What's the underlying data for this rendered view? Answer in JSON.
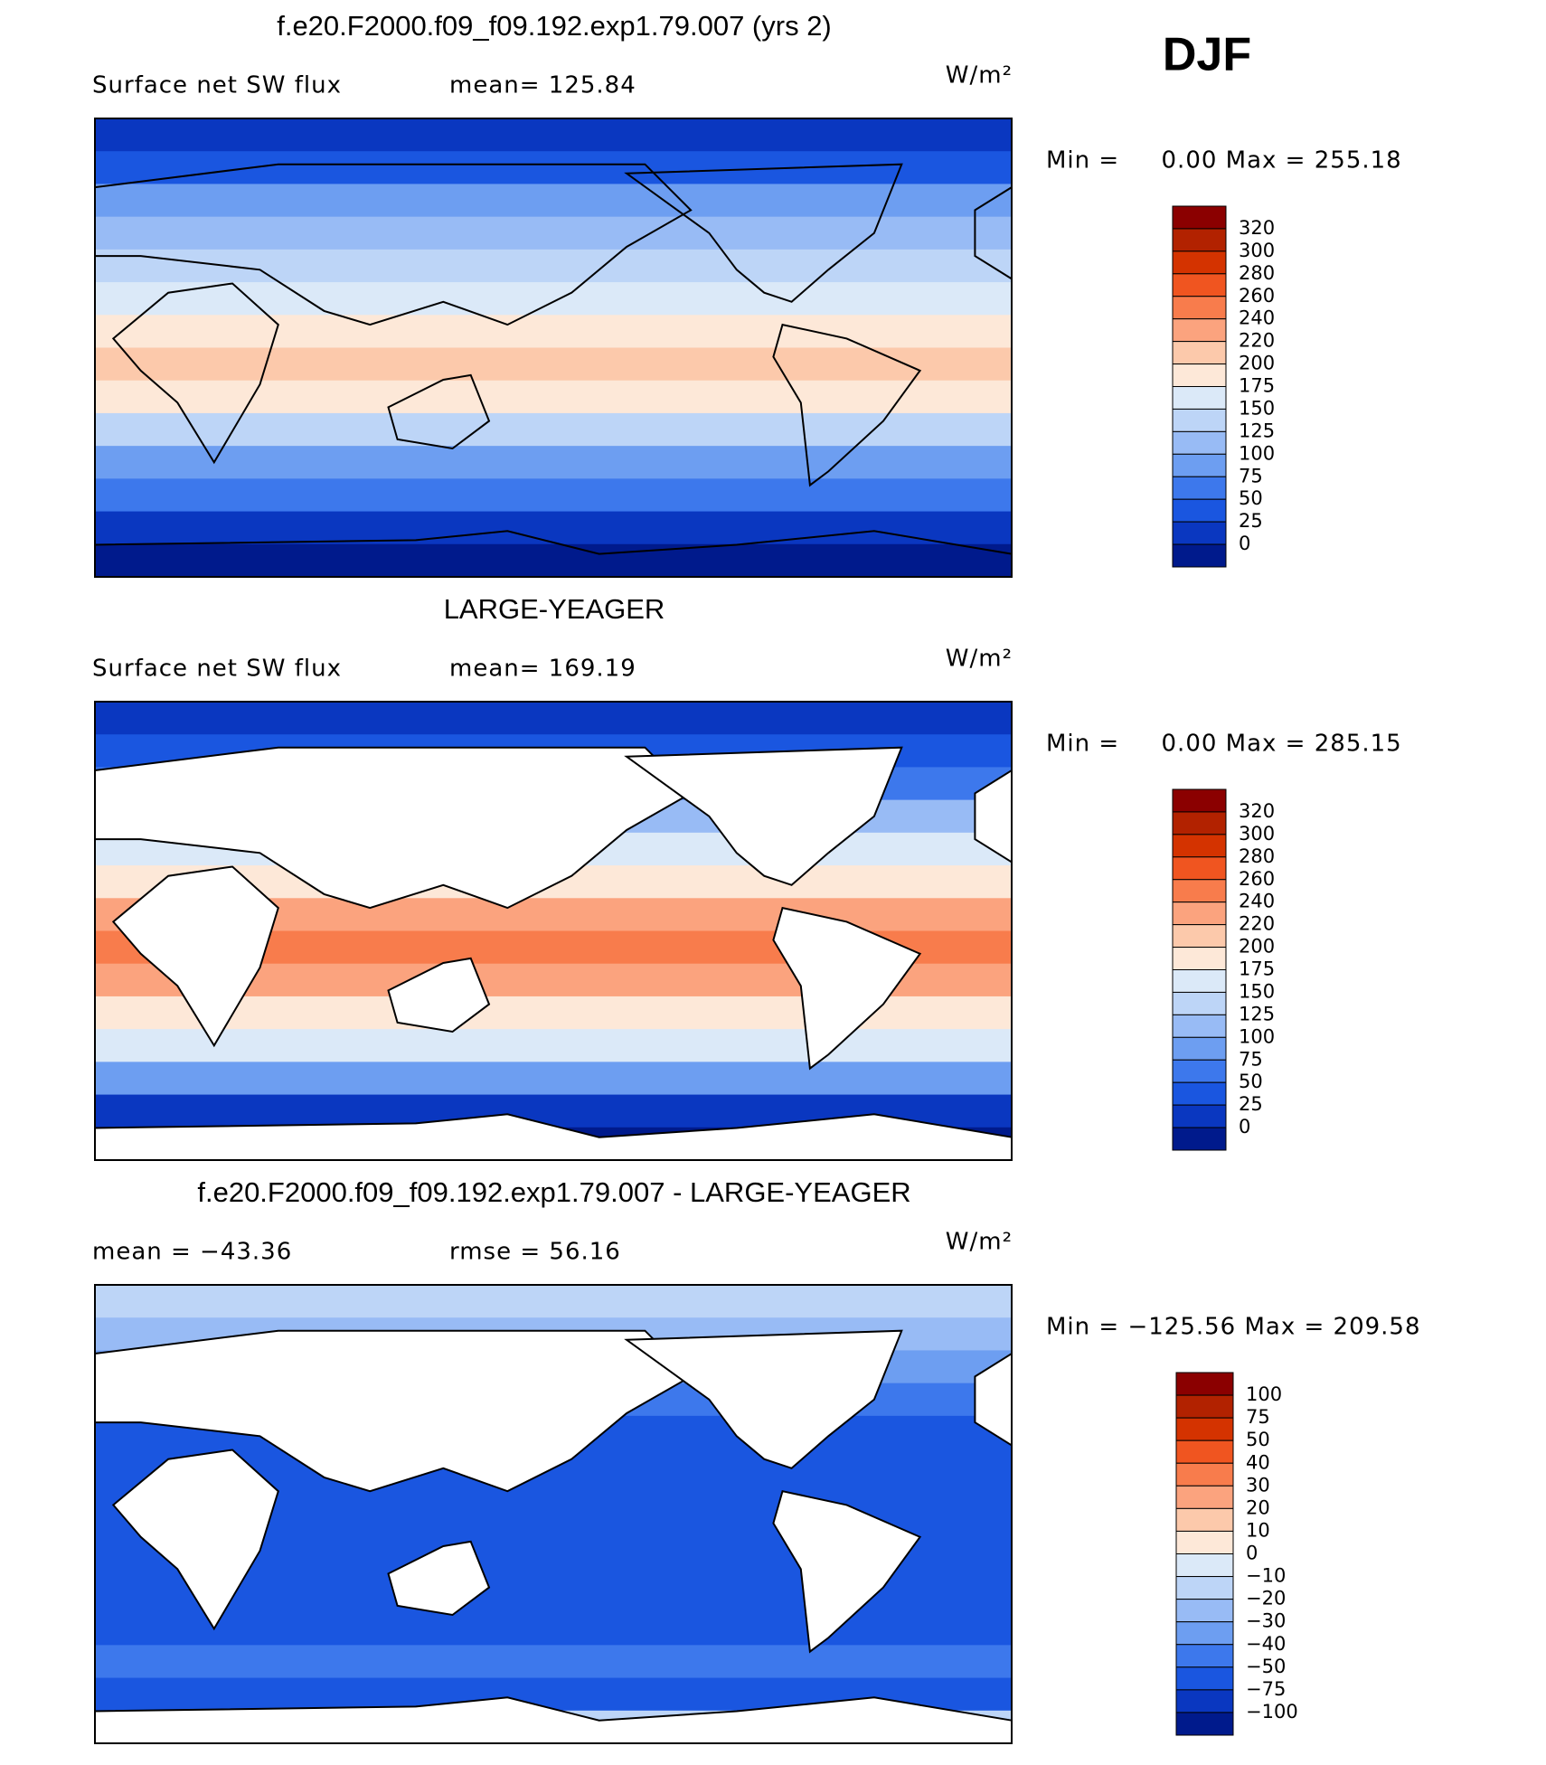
{
  "figure": {
    "season": "DJF",
    "panels": [
      {
        "title": "f.e20.F2000.f09_f09.192.exp1.79.007 (yrs 2)",
        "left_label": "Surface net SW flux",
        "mid_label": "mean= 125.84",
        "units": "W/m²",
        "stats": "Min =     0.00 Max = 255.18",
        "colorbar": {
          "labels": [
            "320",
            "300",
            "280",
            "260",
            "240",
            "220",
            "200",
            "175",
            "150",
            "125",
            "100",
            "75",
            "50",
            "25",
            "0"
          ],
          "colors": [
            "#8b0000",
            "#b22200",
            "#d43300",
            "#f05520",
            "#f87c4c",
            "#fba37e",
            "#fcc9ab",
            "#fde8d8",
            "#dbe9f8",
            "#bdd5f7",
            "#98bbf5",
            "#6d9ef1",
            "#3d78ec",
            "#1a56e0",
            "#0a37c0",
            "#001a8c"
          ]
        }
      },
      {
        "title": "LARGE-YEAGER",
        "left_label": "Surface net SW flux",
        "mid_label": "mean= 169.19",
        "units": "W/m²",
        "stats": "Min =     0.00 Max = 285.15",
        "colorbar": {
          "labels": [
            "320",
            "300",
            "280",
            "260",
            "240",
            "220",
            "200",
            "175",
            "150",
            "125",
            "100",
            "75",
            "50",
            "25",
            "0"
          ],
          "colors": [
            "#8b0000",
            "#b22200",
            "#d43300",
            "#f05520",
            "#f87c4c",
            "#fba37e",
            "#fcc9ab",
            "#fde8d8",
            "#dbe9f8",
            "#bdd5f7",
            "#98bbf5",
            "#6d9ef1",
            "#3d78ec",
            "#1a56e0",
            "#0a37c0",
            "#001a8c"
          ]
        }
      },
      {
        "title": "f.e20.F2000.f09_f09.192.exp1.79.007 - LARGE-YEAGER",
        "left_label": "mean = −43.36",
        "mid_label": "rmse =   56.16",
        "units": "W/m²",
        "stats": "Min = −125.56 Max = 209.58",
        "colorbar": {
          "labels": [
            "100",
            "75",
            "50",
            "40",
            "30",
            "20",
            "10",
            "0",
            "−10",
            "−20",
            "−30",
            "−40",
            "−50",
            "−75",
            "−100"
          ],
          "colors": [
            "#8b0000",
            "#b22200",
            "#d43300",
            "#f05520",
            "#f87c4c",
            "#fba37e",
            "#fcc9ab",
            "#fde8d8",
            "#dbe9f8",
            "#bdd5f7",
            "#98bbf5",
            "#6d9ef1",
            "#3d78ec",
            "#1a56e0",
            "#0a37c0",
            "#001a8c"
          ]
        }
      }
    ]
  }
}
